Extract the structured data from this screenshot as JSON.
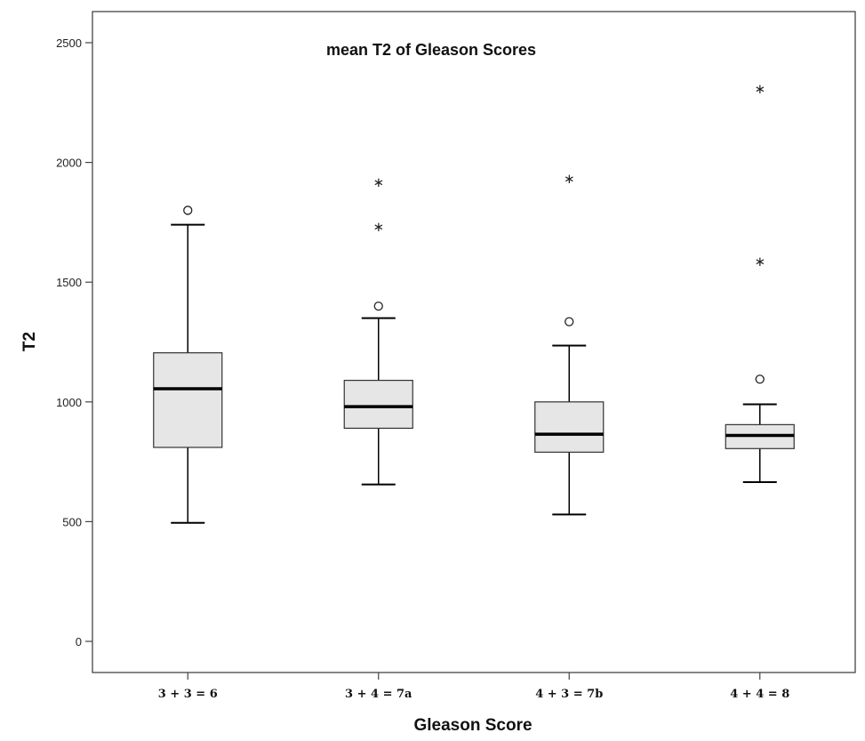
{
  "chart_data": {
    "type": "boxplot",
    "title": "mean T2 of Gleason Scores",
    "xlabel": "Gleason Score",
    "ylabel": "T2",
    "ylim": [
      -130,
      2630
    ],
    "yticks": [
      0,
      500,
      1000,
      1500,
      2000,
      2500
    ],
    "ytick_labels": [
      "0",
      "500",
      "1000",
      "1500",
      "2000",
      "2500"
    ],
    "grid": false,
    "legend": "none",
    "categories": [
      "3 + 3 = 6",
      "3 + 4 = 7a",
      "4 + 3 = 7b",
      "4 + 4 = 8"
    ],
    "boxes": [
      {
        "whisker_low": 495,
        "q1": 810,
        "median": 1055,
        "q3": 1205,
        "whisker_high": 1740,
        "outliers": [
          1800
        ],
        "extremes": []
      },
      {
        "whisker_low": 655,
        "q1": 890,
        "median": 980,
        "q3": 1090,
        "whisker_high": 1350,
        "outliers": [
          1400
        ],
        "extremes": [
          1735,
          1920
        ]
      },
      {
        "whisker_low": 530,
        "q1": 790,
        "median": 865,
        "q3": 1000,
        "whisker_high": 1235,
        "outliers": [
          1335
        ],
        "extremes": [
          1935
        ]
      },
      {
        "whisker_low": 665,
        "q1": 805,
        "median": 860,
        "q3": 905,
        "whisker_high": 990,
        "outliers": [
          1095
        ],
        "extremes": [
          1590,
          2310
        ]
      }
    ],
    "colors": {
      "box_fill": "#e6e6e6",
      "stroke": "#000000"
    }
  }
}
